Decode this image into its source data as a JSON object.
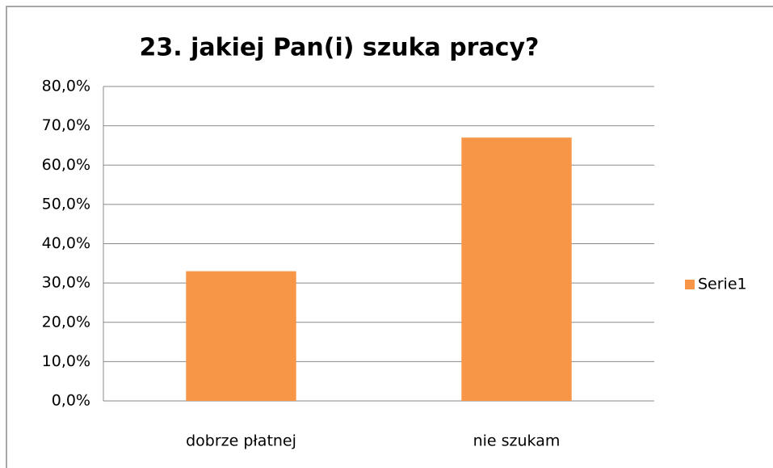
{
  "chart_data": {
    "type": "bar",
    "title": "23. jakiej Pan(i) szuka pracy?",
    "categories": [
      "dobrze płatnej",
      "nie szukam"
    ],
    "series": [
      {
        "name": "Serie1",
        "color": "#f79646",
        "values": [
          33,
          67
        ]
      }
    ],
    "ylim": [
      0,
      80
    ],
    "yticks": [
      {
        "value": 0,
        "label": "0,0%"
      },
      {
        "value": 10,
        "label": "10,0%"
      },
      {
        "value": 20,
        "label": "20,0%"
      },
      {
        "value": 30,
        "label": "30,0%"
      },
      {
        "value": 40,
        "label": "40,0%"
      },
      {
        "value": 50,
        "label": "50,0%"
      },
      {
        "value": 60,
        "label": "60,0%"
      },
      {
        "value": 70,
        "label": "70,0%"
      },
      {
        "value": 80,
        "label": "80,0%"
      }
    ],
    "grid": true,
    "legend": "right"
  }
}
